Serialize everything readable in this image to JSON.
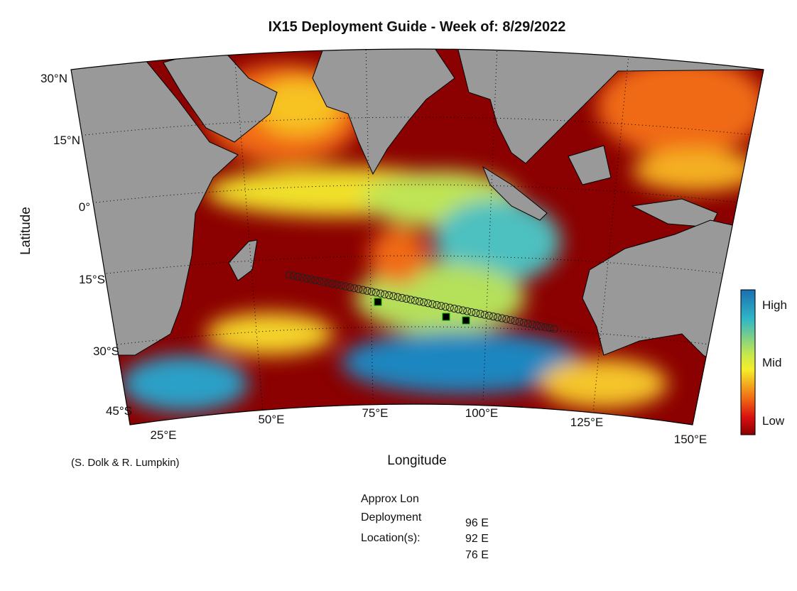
{
  "title": "IX15 Deployment Guide - Week of: 8/29/2022",
  "axes": {
    "y_label": "Latitude",
    "x_label": "Longitude",
    "lat_labels": [
      "30°N",
      "15°N",
      "0°",
      "15°S",
      "30°S",
      "45°S"
    ],
    "lon_labels": [
      "25°E",
      "50°E",
      "75°E",
      "100°E",
      "125°E",
      "150°E"
    ]
  },
  "colorbar": {
    "labels": [
      "High",
      "Mid",
      "Low"
    ]
  },
  "credit": "(S. Dolk & R. Lumpkin)",
  "deployment": {
    "heading": [
      "Approx Lon",
      "Deployment",
      "Location(s):"
    ],
    "locations": [
      "96 E",
      "92 E",
      "76 E"
    ]
  }
}
